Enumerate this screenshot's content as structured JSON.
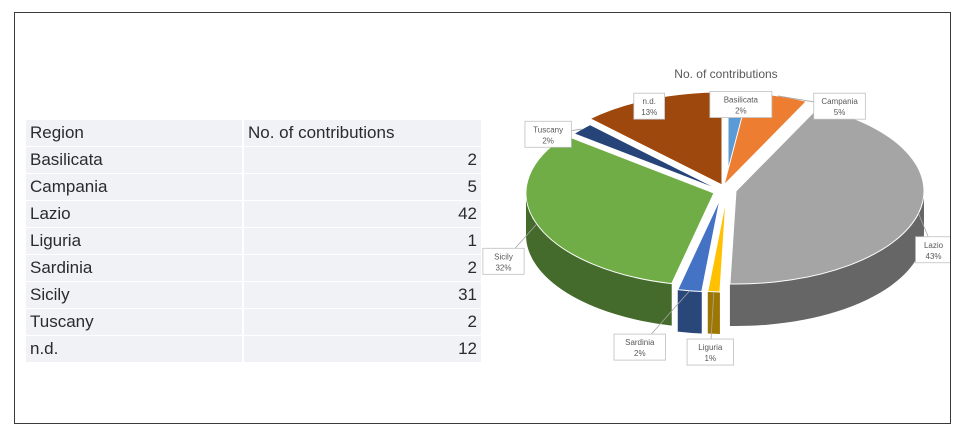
{
  "table": {
    "headers": [
      "Region",
      "No. of contributions"
    ],
    "rows": [
      [
        "Basilicata",
        "2"
      ],
      [
        "Campania",
        "5"
      ],
      [
        "Lazio",
        "42"
      ],
      [
        "Liguria",
        "1"
      ],
      [
        "Sardinia",
        "2"
      ],
      [
        "Sicily",
        "31"
      ],
      [
        "Tuscany",
        "2"
      ],
      [
        "n.d.",
        "12"
      ]
    ]
  },
  "chart_data": {
    "type": "pie",
    "title": "No. of contributions",
    "categories": [
      "Basilicata",
      "Campania",
      "Lazio",
      "Liguria",
      "Sardinia",
      "Sicily",
      "Tuscany",
      "n.d."
    ],
    "values": [
      2,
      5,
      42,
      1,
      2,
      31,
      2,
      12
    ],
    "percent_labels": [
      "2%",
      "5%",
      "43%",
      "1%",
      "2%",
      "32%",
      "2%",
      "13%"
    ],
    "colors": [
      "#5b9bd5",
      "#ed7d31",
      "#a5a5a5",
      "#ffc000",
      "#4472c4",
      "#70ad47",
      "#264478",
      "#9e480e"
    ],
    "style": "3d-exploded-pie"
  }
}
